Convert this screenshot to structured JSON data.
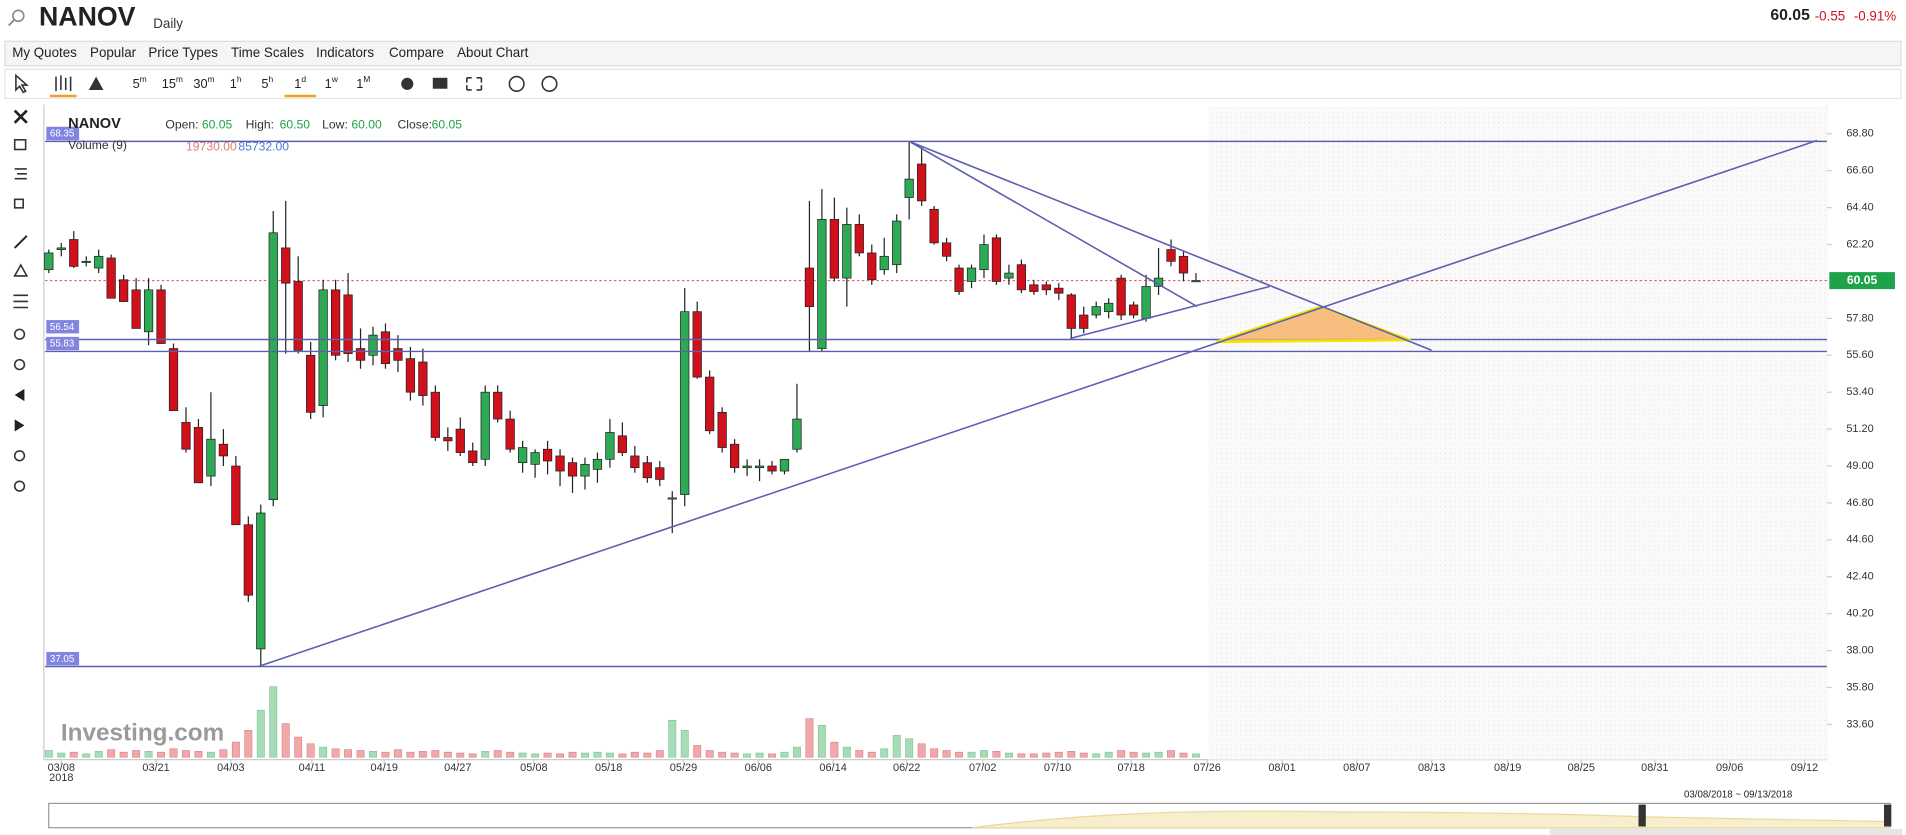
{
  "header": {
    "symbol": "NANOV",
    "period": "Daily",
    "price": 60.05,
    "change": -0.55,
    "change_pct": "-0.91%"
  },
  "menu": [
    "My Quotes",
    "Popular",
    "Price Types",
    "Time Scales",
    "Indicators",
    "Compare",
    "About Chart"
  ],
  "toolbar": {
    "timeframes": [
      [
        "5",
        "m"
      ],
      [
        "15",
        "m"
      ],
      [
        "30",
        "m"
      ],
      [
        "1",
        "h"
      ],
      [
        "5",
        "h"
      ],
      [
        "1",
        "d"
      ],
      [
        "1",
        "w"
      ],
      [
        "1",
        "M"
      ]
    ]
  },
  "legend": {
    "symbol": "NANOV",
    "open_label": "Open:",
    "open": "60.05",
    "high_label": "High:",
    "high": "60.50",
    "low_label": "Low:",
    "low": "60.00",
    "close_label": "Close:",
    "close": "60.05",
    "volume_label": "Volume (9)",
    "volume_a": "19730.00",
    "volume_b": "85732.00"
  },
  "navigator": {
    "range": "03/08/2018 ~ 09/13/2018"
  },
  "watermark": "Investing.com",
  "chart_data": {
    "type": "candlestick",
    "up_color": "#2eaa55",
    "down_color": "#d0101a",
    "level_color": "#5c5fb0",
    "last_price_color": "#1fa34a",
    "xlim": [
      -0.3,
      142.6
    ],
    "ylim": [
      31.5,
      70.4
    ],
    "x_year": "2018",
    "xticks": [
      {
        "value": 1.0,
        "label": "03/08"
      },
      {
        "value": 8.6,
        "label": "03/21"
      },
      {
        "value": 14.6,
        "label": "04/03"
      },
      {
        "value": 21.1,
        "label": "04/11"
      },
      {
        "value": 26.9,
        "label": "04/19"
      },
      {
        "value": 32.8,
        "label": "04/27"
      },
      {
        "value": 38.9,
        "label": "05/08"
      },
      {
        "value": 44.9,
        "label": "05/18"
      },
      {
        "value": 50.9,
        "label": "05/29"
      },
      {
        "value": 56.9,
        "label": "06/06"
      },
      {
        "value": 62.9,
        "label": "06/14"
      },
      {
        "value": 68.8,
        "label": "06/22"
      },
      {
        "value": 74.9,
        "label": "07/02"
      },
      {
        "value": 80.9,
        "label": "07/10"
      },
      {
        "value": 86.8,
        "label": "07/18"
      },
      {
        "value": 92.9,
        "label": "07/26"
      },
      {
        "value": 98.9,
        "label": "08/01"
      },
      {
        "value": 104.9,
        "label": "08/07"
      },
      {
        "value": 110.9,
        "label": "08/13"
      },
      {
        "value": 117.0,
        "label": "08/19"
      },
      {
        "value": 122.9,
        "label": "08/25"
      },
      {
        "value": 128.8,
        "label": "08/31"
      },
      {
        "value": 134.8,
        "label": "09/06"
      },
      {
        "value": 140.8,
        "label": "09/12"
      }
    ],
    "yticks": [
      {
        "value": 68.8,
        "label": "68.80"
      },
      {
        "value": 66.6,
        "label": "66.60"
      },
      {
        "value": 64.4,
        "label": "64.40"
      },
      {
        "value": 62.2,
        "label": "62.20"
      },
      {
        "value": 57.8,
        "label": "57.80"
      },
      {
        "value": 55.6,
        "label": "55.60"
      },
      {
        "value": 53.4,
        "label": "53.40"
      },
      {
        "value": 51.2,
        "label": "51.20"
      },
      {
        "value": 49.0,
        "label": "49.00"
      },
      {
        "value": 46.8,
        "label": "46.80"
      },
      {
        "value": 44.6,
        "label": "44.60"
      },
      {
        "value": 42.4,
        "label": "42.40"
      },
      {
        "value": 40.2,
        "label": "40.20"
      },
      {
        "value": 38.0,
        "label": "38.00"
      },
      {
        "value": 35.8,
        "label": "35.80"
      },
      {
        "value": 33.6,
        "label": "33.60"
      }
    ],
    "last_price": 60.05,
    "levels": [
      68.35,
      56.54,
      55.83,
      37.05
    ],
    "trend_lines": [
      {
        "x": [
          16.8,
          141.8
        ],
        "y": [
          37.05,
          68.4
        ]
      },
      {
        "x": [
          69.0,
          110.9
        ],
        "y": [
          68.35,
          55.9
        ]
      },
      {
        "x": [
          69.0,
          92.1
        ],
        "y": [
          68.35,
          58.5
        ]
      },
      {
        "x": [
          81.9,
          97.9
        ],
        "y": [
          56.6,
          59.7
        ]
      }
    ],
    "shapes": [
      {
        "x": [
          93.6,
          102.0,
          109.2
        ],
        "y": [
          56.4,
          58.5,
          56.5
        ],
        "color": "#f7b36a",
        "edge": "#f2e600"
      }
    ],
    "candles": [
      [
        60.7,
        61.9,
        60.5,
        61.7
      ],
      [
        61.9,
        62.3,
        61.5,
        62.0
      ],
      [
        62.5,
        63.0,
        60.8,
        60.9
      ],
      [
        61.2,
        61.5,
        60.9,
        61.2
      ],
      [
        60.8,
        61.9,
        60.5,
        61.5
      ],
      [
        61.4,
        61.6,
        59.0,
        59.0
      ],
      [
        60.1,
        60.4,
        58.8,
        58.8
      ],
      [
        59.5,
        60.2,
        57.2,
        57.2
      ],
      [
        57.0,
        60.2,
        56.2,
        59.5
      ],
      [
        59.5,
        59.8,
        56.3,
        56.3
      ],
      [
        56.0,
        56.3,
        52.3,
        52.3
      ],
      [
        51.6,
        52.5,
        49.8,
        50.0
      ],
      [
        51.3,
        51.8,
        48.0,
        48.0
      ],
      [
        48.4,
        53.4,
        47.8,
        50.6
      ],
      [
        50.3,
        51.2,
        49.0,
        49.6
      ],
      [
        49.0,
        49.6,
        45.5,
        45.5
      ],
      [
        45.5,
        46.0,
        40.9,
        41.3
      ],
      [
        38.1,
        46.7,
        37.05,
        46.2
      ],
      [
        47.0,
        64.2,
        46.6,
        62.9
      ],
      [
        62.0,
        64.8,
        55.7,
        59.9
      ],
      [
        60.0,
        61.5,
        55.7,
        55.9
      ],
      [
        55.6,
        56.4,
        51.8,
        52.2
      ],
      [
        52.6,
        60.1,
        51.9,
        59.5
      ],
      [
        59.5,
        60.1,
        55.3,
        55.6
      ],
      [
        59.2,
        60.5,
        55.2,
        55.7
      ],
      [
        56.0,
        57.2,
        54.8,
        55.3
      ],
      [
        55.6,
        57.3,
        55.0,
        56.8
      ],
      [
        57.0,
        57.5,
        54.8,
        55.1
      ],
      [
        56.0,
        56.8,
        54.6,
        55.3
      ],
      [
        55.4,
        56.1,
        52.9,
        53.4
      ],
      [
        55.2,
        56.0,
        52.6,
        53.2
      ],
      [
        53.4,
        53.8,
        50.5,
        50.7
      ],
      [
        50.7,
        51.3,
        49.9,
        50.5
      ],
      [
        51.2,
        51.9,
        49.6,
        49.8
      ],
      [
        49.9,
        50.4,
        49.0,
        49.2
      ],
      [
        49.4,
        53.8,
        49.0,
        53.4
      ],
      [
        53.4,
        53.8,
        51.6,
        51.8
      ],
      [
        51.8,
        52.3,
        49.8,
        50.0
      ],
      [
        49.2,
        50.5,
        48.6,
        50.1
      ],
      [
        49.1,
        50.0,
        48.3,
        49.8
      ],
      [
        50.0,
        50.5,
        48.5,
        49.3
      ],
      [
        49.6,
        50.0,
        47.8,
        48.7
      ],
      [
        49.2,
        49.5,
        47.4,
        48.4
      ],
      [
        48.4,
        49.5,
        47.6,
        49.1
      ],
      [
        48.8,
        49.8,
        48.0,
        49.4
      ],
      [
        49.4,
        51.8,
        48.9,
        51.0
      ],
      [
        50.8,
        51.6,
        49.6,
        49.8
      ],
      [
        49.6,
        50.2,
        48.6,
        48.9
      ],
      [
        49.2,
        49.6,
        48.0,
        48.3
      ],
      [
        48.9,
        49.3,
        47.8,
        48.2
      ],
      [
        47.1,
        47.5,
        45.0,
        47.1
      ],
      [
        47.3,
        59.6,
        46.6,
        58.2
      ],
      [
        58.2,
        58.8,
        54.2,
        54.3
      ],
      [
        54.3,
        54.7,
        50.9,
        51.1
      ],
      [
        52.2,
        52.5,
        49.8,
        50.1
      ],
      [
        50.3,
        50.6,
        48.6,
        48.9
      ],
      [
        48.9,
        49.4,
        48.4,
        49.0
      ],
      [
        48.9,
        49.4,
        48.1,
        49.0
      ],
      [
        49.0,
        49.3,
        48.5,
        48.7
      ],
      [
        48.7,
        49.4,
        48.5,
        49.4
      ],
      [
        50.0,
        53.9,
        49.8,
        51.8
      ],
      [
        60.8,
        64.8,
        55.8,
        58.5
      ],
      [
        56.0,
        65.5,
        55.8,
        63.7
      ],
      [
        63.7,
        65.0,
        60.0,
        60.2
      ],
      [
        60.2,
        64.4,
        58.5,
        63.4
      ],
      [
        63.4,
        64.0,
        61.5,
        61.7
      ],
      [
        61.7,
        62.2,
        59.8,
        60.1
      ],
      [
        60.7,
        62.6,
        60.4,
        61.5
      ],
      [
        61.0,
        64.0,
        60.5,
        63.6
      ],
      [
        65.0,
        68.3,
        63.7,
        66.1
      ],
      [
        67.0,
        68.0,
        64.5,
        64.8
      ],
      [
        64.3,
        64.5,
        62.2,
        62.3
      ],
      [
        62.3,
        62.6,
        61.2,
        61.5
      ],
      [
        60.8,
        61.0,
        59.2,
        59.4
      ],
      [
        60.0,
        61.0,
        59.6,
        60.8
      ],
      [
        60.7,
        62.8,
        60.2,
        62.2
      ],
      [
        62.6,
        62.8,
        59.8,
        60.0
      ],
      [
        60.2,
        61.0,
        59.8,
        60.5
      ],
      [
        61.0,
        61.3,
        59.3,
        59.5
      ],
      [
        59.8,
        60.1,
        59.2,
        59.4
      ],
      [
        59.8,
        60.0,
        59.2,
        59.5
      ],
      [
        59.6,
        59.9,
        58.9,
        59.3
      ],
      [
        59.2,
        59.3,
        56.6,
        57.2
      ],
      [
        58.0,
        58.5,
        56.9,
        57.2
      ],
      [
        58.0,
        58.8,
        57.8,
        58.5
      ],
      [
        58.2,
        59.0,
        57.8,
        58.7
      ],
      [
        60.2,
        60.4,
        57.7,
        58.0
      ],
      [
        58.6,
        58.8,
        57.8,
        58.0
      ],
      [
        57.8,
        60.4,
        57.6,
        59.7
      ],
      [
        59.7,
        62.0,
        59.2,
        60.2
      ],
      [
        61.9,
        62.5,
        60.9,
        61.2
      ],
      [
        61.5,
        61.8,
        60.0,
        60.5
      ],
      [
        60.05,
        60.5,
        60.0,
        60.05
      ]
    ],
    "volume": [
      40000,
      25000,
      30000,
      20000,
      35000,
      45000,
      30000,
      40000,
      35000,
      30000,
      50000,
      40000,
      35000,
      30000,
      45000,
      90000,
      160000,
      280000,
      420000,
      200000,
      120000,
      80000,
      60000,
      50000,
      45000,
      40000,
      35000,
      30000,
      45000,
      30000,
      35000,
      40000,
      30000,
      25000,
      20000,
      35000,
      40000,
      30000,
      25000,
      20000,
      25000,
      20000,
      30000,
      25000,
      30000,
      25000,
      20000,
      30000,
      25000,
      40000,
      220000,
      160000,
      70000,
      40000,
      30000,
      25000,
      20000,
      25000,
      20000,
      30000,
      60000,
      230000,
      190000,
      90000,
      60000,
      40000,
      30000,
      50000,
      130000,
      110000,
      80000,
      50000,
      40000,
      30000,
      30000,
      40000,
      35000,
      25000,
      20000,
      20000,
      25000,
      30000,
      35000,
      25000,
      20000,
      30000,
      40000,
      30000,
      25000,
      30000,
      40000,
      25000,
      19730
    ]
  }
}
